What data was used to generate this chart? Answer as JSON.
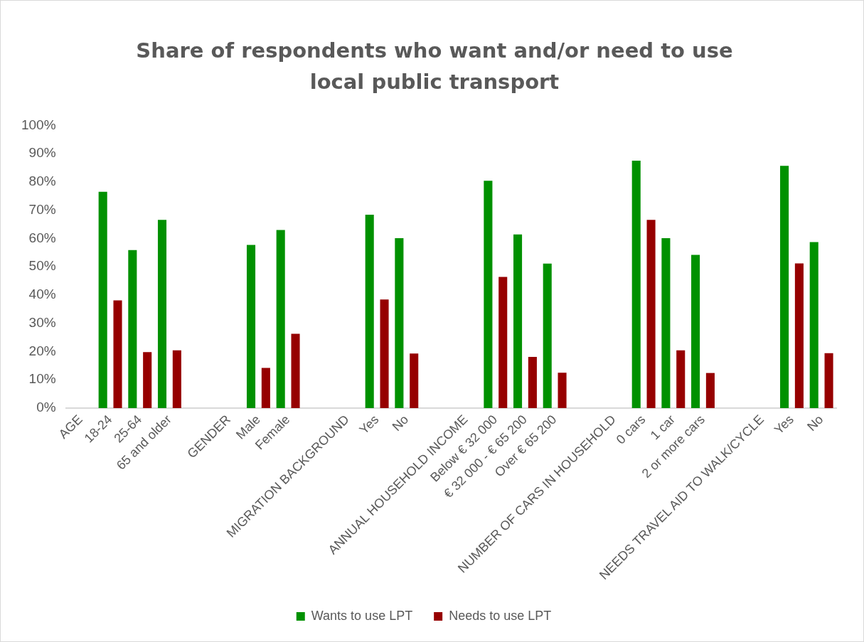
{
  "chart_data": {
    "type": "bar",
    "title": "Share of respondents who want and/or need to use local public transport",
    "categories": [
      "AGE",
      "18-24",
      "25-64",
      "65 and older",
      null,
      "GENDER",
      "Male",
      "Female",
      null,
      "MIGRATION BACKGROUND",
      "Yes",
      "No",
      null,
      "ANNUAL HOUSEHOLD INCOME",
      "Below € 32 000",
      "€ 32 000 - € 65 200",
      "Over € 65 200",
      null,
      "NUMBER OF CARS IN HOUSEHOLD",
      "0 cars",
      "1 car",
      "2 or more cars",
      null,
      "NEEDS TRAVEL AID TO WALK/CYCLE",
      "Yes",
      "No"
    ],
    "series": [
      {
        "name": "Wants to use LPT",
        "color": "#009100",
        "values": [
          null,
          76.5,
          55.9,
          66.6,
          null,
          null,
          57.7,
          63.0,
          null,
          null,
          68.4,
          60.1,
          null,
          null,
          80.4,
          61.4,
          51.1,
          null,
          null,
          87.5,
          60.1,
          54.2,
          null,
          null,
          85.7,
          58.7
        ]
      },
      {
        "name": "Needs to use LPT",
        "color": "#960000",
        "values": [
          null,
          38.1,
          19.8,
          20.4,
          null,
          null,
          14.2,
          26.3,
          null,
          null,
          38.4,
          19.3,
          null,
          null,
          46.4,
          18.1,
          12.5,
          null,
          null,
          66.6,
          20.4,
          12.4,
          null,
          null,
          51.2,
          19.4
        ]
      }
    ],
    "ylim": [
      0,
      100
    ],
    "yticks": [
      {
        "value": 0,
        "label": "0%"
      },
      {
        "value": 10,
        "label": "10%"
      },
      {
        "value": 20,
        "label": "20%"
      },
      {
        "value": 30,
        "label": "30%"
      },
      {
        "value": 40,
        "label": "40%"
      },
      {
        "value": 50,
        "label": "50%"
      },
      {
        "value": 60,
        "label": "60%"
      },
      {
        "value": 70,
        "label": "70%"
      },
      {
        "value": 80,
        "label": "80%"
      },
      {
        "value": 90,
        "label": "90%"
      },
      {
        "value": 100,
        "label": "100%"
      }
    ],
    "grid": false,
    "legend": "bottom"
  }
}
